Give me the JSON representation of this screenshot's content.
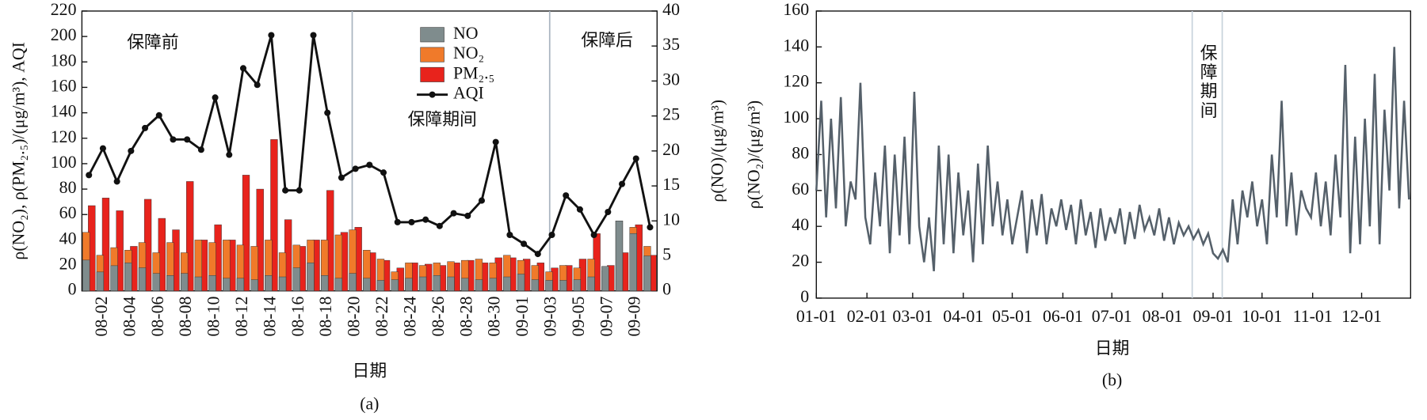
{
  "chart_data": [
    {
      "type": "bar",
      "caption": "(a)",
      "x_label": "日期",
      "y_label": "ρ(NO₂), ρ(PM₂.₅)/(μg/m³), AQI",
      "y2_label": "ρ(NO)/(μg/m³)",
      "annotations": [
        "保障前",
        "保障期间",
        "保障后"
      ],
      "categories": [
        null,
        "08-02",
        null,
        "08-04",
        null,
        "08-06",
        null,
        "08-08",
        null,
        "08-10",
        null,
        "08-12",
        null,
        "08-14",
        null,
        "08-16",
        null,
        "08-18",
        null,
        "08-20",
        null,
        "08-22",
        null,
        "08-24",
        null,
        "08-26",
        null,
        "08-28",
        null,
        "08-30",
        null,
        "09-01",
        null,
        "09-03",
        null,
        "09-05",
        null,
        "09-07",
        null,
        "09-09",
        null
      ],
      "ylim": [
        0,
        220
      ],
      "yticks": [
        0,
        20,
        40,
        60,
        80,
        100,
        120,
        140,
        160,
        180,
        200,
        220
      ],
      "y2lim": [
        0,
        40
      ],
      "y2ticks": [
        0,
        5,
        10,
        15,
        20,
        25,
        30,
        35,
        40
      ],
      "series": [
        {
          "name": "NO",
          "type": "bar",
          "axis": "y2",
          "color": "#7f8c8d",
          "values": [
            4.4,
            2.7,
            3.6,
            4.0,
            3.3,
            2.5,
            2.2,
            2.5,
            2.0,
            2.2,
            1.8,
            1.8,
            1.6,
            2.2,
            2.0,
            3.3,
            4.0,
            2.2,
            1.8,
            2.5,
            1.8,
            1.5,
            1.6,
            1.8,
            2.0,
            2.2,
            2.0,
            1.8,
            1.6,
            1.8,
            2.0,
            2.4,
            1.6,
            1.5,
            1.5,
            1.6,
            2.0,
            3.5,
            10.0,
            8.2,
            5.0
          ]
        },
        {
          "name": "NO₂",
          "type": "bar",
          "color": "#f07a2a",
          "values": [
            46,
            28,
            34,
            32,
            38,
            30,
            38,
            30,
            40,
            38,
            40,
            36,
            35,
            40,
            30,
            36,
            40,
            40,
            44,
            48,
            32,
            25,
            15,
            22,
            20,
            22,
            23,
            24,
            25,
            22,
            28,
            24,
            20,
            15,
            20,
            18,
            25,
            16,
            55,
            50,
            35
          ]
        },
        {
          "name": "PM₂.₅",
          "type": "bar",
          "color": "#e8231c",
          "values": [
            67,
            73,
            63,
            35,
            72,
            57,
            48,
            86,
            40,
            52,
            40,
            91,
            80,
            119,
            56,
            35,
            40,
            79,
            46,
            50,
            30,
            24,
            18,
            22,
            21,
            20,
            22,
            24,
            22,
            26,
            26,
            25,
            22,
            18,
            20,
            25,
            45,
            20,
            30,
            52,
            28
          ]
        },
        {
          "name": "AQI",
          "type": "line",
          "color": "#111111",
          "values": [
            91,
            112,
            86,
            110,
            128,
            138,
            119,
            119,
            111,
            152,
            107,
            175,
            162,
            201,
            79,
            79,
            201,
            140,
            89,
            96,
            99,
            93,
            54,
            54,
            56,
            51,
            61,
            59,
            71,
            117,
            44,
            37,
            29,
            44,
            75,
            64,
            44,
            62,
            84,
            104,
            50
          ]
        }
      ]
    },
    {
      "type": "line",
      "caption": "(b)",
      "x_label": "日期",
      "y_label": "ρ(NO₂)/(μg/m³)",
      "annotations": [
        "保障期间"
      ],
      "xlim": [
        1,
        365
      ],
      "xticks": [
        {
          "value": 1,
          "label": "01-01"
        },
        {
          "value": 32,
          "label": "02-01"
        },
        {
          "value": 60,
          "label": "03-01"
        },
        {
          "value": 91,
          "label": "04-01"
        },
        {
          "value": 121,
          "label": "05-01"
        },
        {
          "value": 152,
          "label": "06-01"
        },
        {
          "value": 182,
          "label": "07-01"
        },
        {
          "value": 213,
          "label": "08-01"
        },
        {
          "value": 244,
          "label": "09-01"
        },
        {
          "value": 274,
          "label": "10-01"
        },
        {
          "value": 305,
          "label": "11-01"
        },
        {
          "value": 335,
          "label": "12-01"
        }
      ],
      "ylim": [
        0,
        160
      ],
      "yticks": [
        0,
        20,
        40,
        60,
        80,
        100,
        120,
        140,
        160
      ],
      "x": [
        1,
        4,
        7,
        10,
        13,
        16,
        19,
        22,
        25,
        28,
        31,
        34,
        37,
        40,
        43,
        46,
        49,
        52,
        55,
        58,
        61,
        64,
        67,
        70,
        73,
        76,
        79,
        82,
        85,
        88,
        91,
        94,
        97,
        100,
        103,
        106,
        109,
        112,
        115,
        118,
        121,
        124,
        127,
        130,
        133,
        136,
        139,
        142,
        145,
        148,
        151,
        154,
        157,
        160,
        163,
        166,
        169,
        172,
        175,
        178,
        181,
        184,
        187,
        190,
        193,
        196,
        199,
        202,
        205,
        208,
        211,
        214,
        217,
        220,
        223,
        226,
        229,
        232,
        235,
        238,
        241,
        244,
        247,
        250,
        253,
        256,
        259,
        262,
        265,
        268,
        271,
        274,
        277,
        280,
        283,
        286,
        289,
        292,
        295,
        298,
        301,
        304,
        307,
        310,
        313,
        316,
        319,
        322,
        325,
        328,
        331,
        334,
        337,
        340,
        343,
        346,
        349,
        352,
        355,
        358,
        361,
        364
      ],
      "series": [
        {
          "name": "NO₂",
          "color": "#55606a",
          "values": [
            60,
            110,
            45,
            100,
            50,
            112,
            40,
            65,
            55,
            120,
            45,
            30,
            70,
            40,
            85,
            25,
            80,
            35,
            90,
            30,
            115,
            40,
            20,
            45,
            15,
            85,
            30,
            80,
            25,
            70,
            35,
            60,
            20,
            75,
            30,
            85,
            40,
            65,
            35,
            55,
            30,
            45,
            60,
            25,
            55,
            35,
            58,
            30,
            50,
            40,
            55,
            38,
            52,
            30,
            55,
            35,
            48,
            28,
            50,
            32,
            45,
            36,
            50,
            30,
            48,
            33,
            52,
            38,
            45,
            35,
            50,
            32,
            45,
            30,
            42,
            35,
            40,
            33,
            38,
            30,
            36,
            25,
            22,
            27,
            20,
            55,
            30,
            60,
            45,
            65,
            40,
            55,
            30,
            80,
            45,
            110,
            40,
            70,
            35,
            60,
            50,
            45,
            70,
            40,
            65,
            35,
            80,
            45,
            130,
            25,
            90,
            30,
            100,
            40,
            125,
            30,
            105,
            60,
            140,
            50,
            110,
            55
          ]
        }
      ]
    }
  ]
}
